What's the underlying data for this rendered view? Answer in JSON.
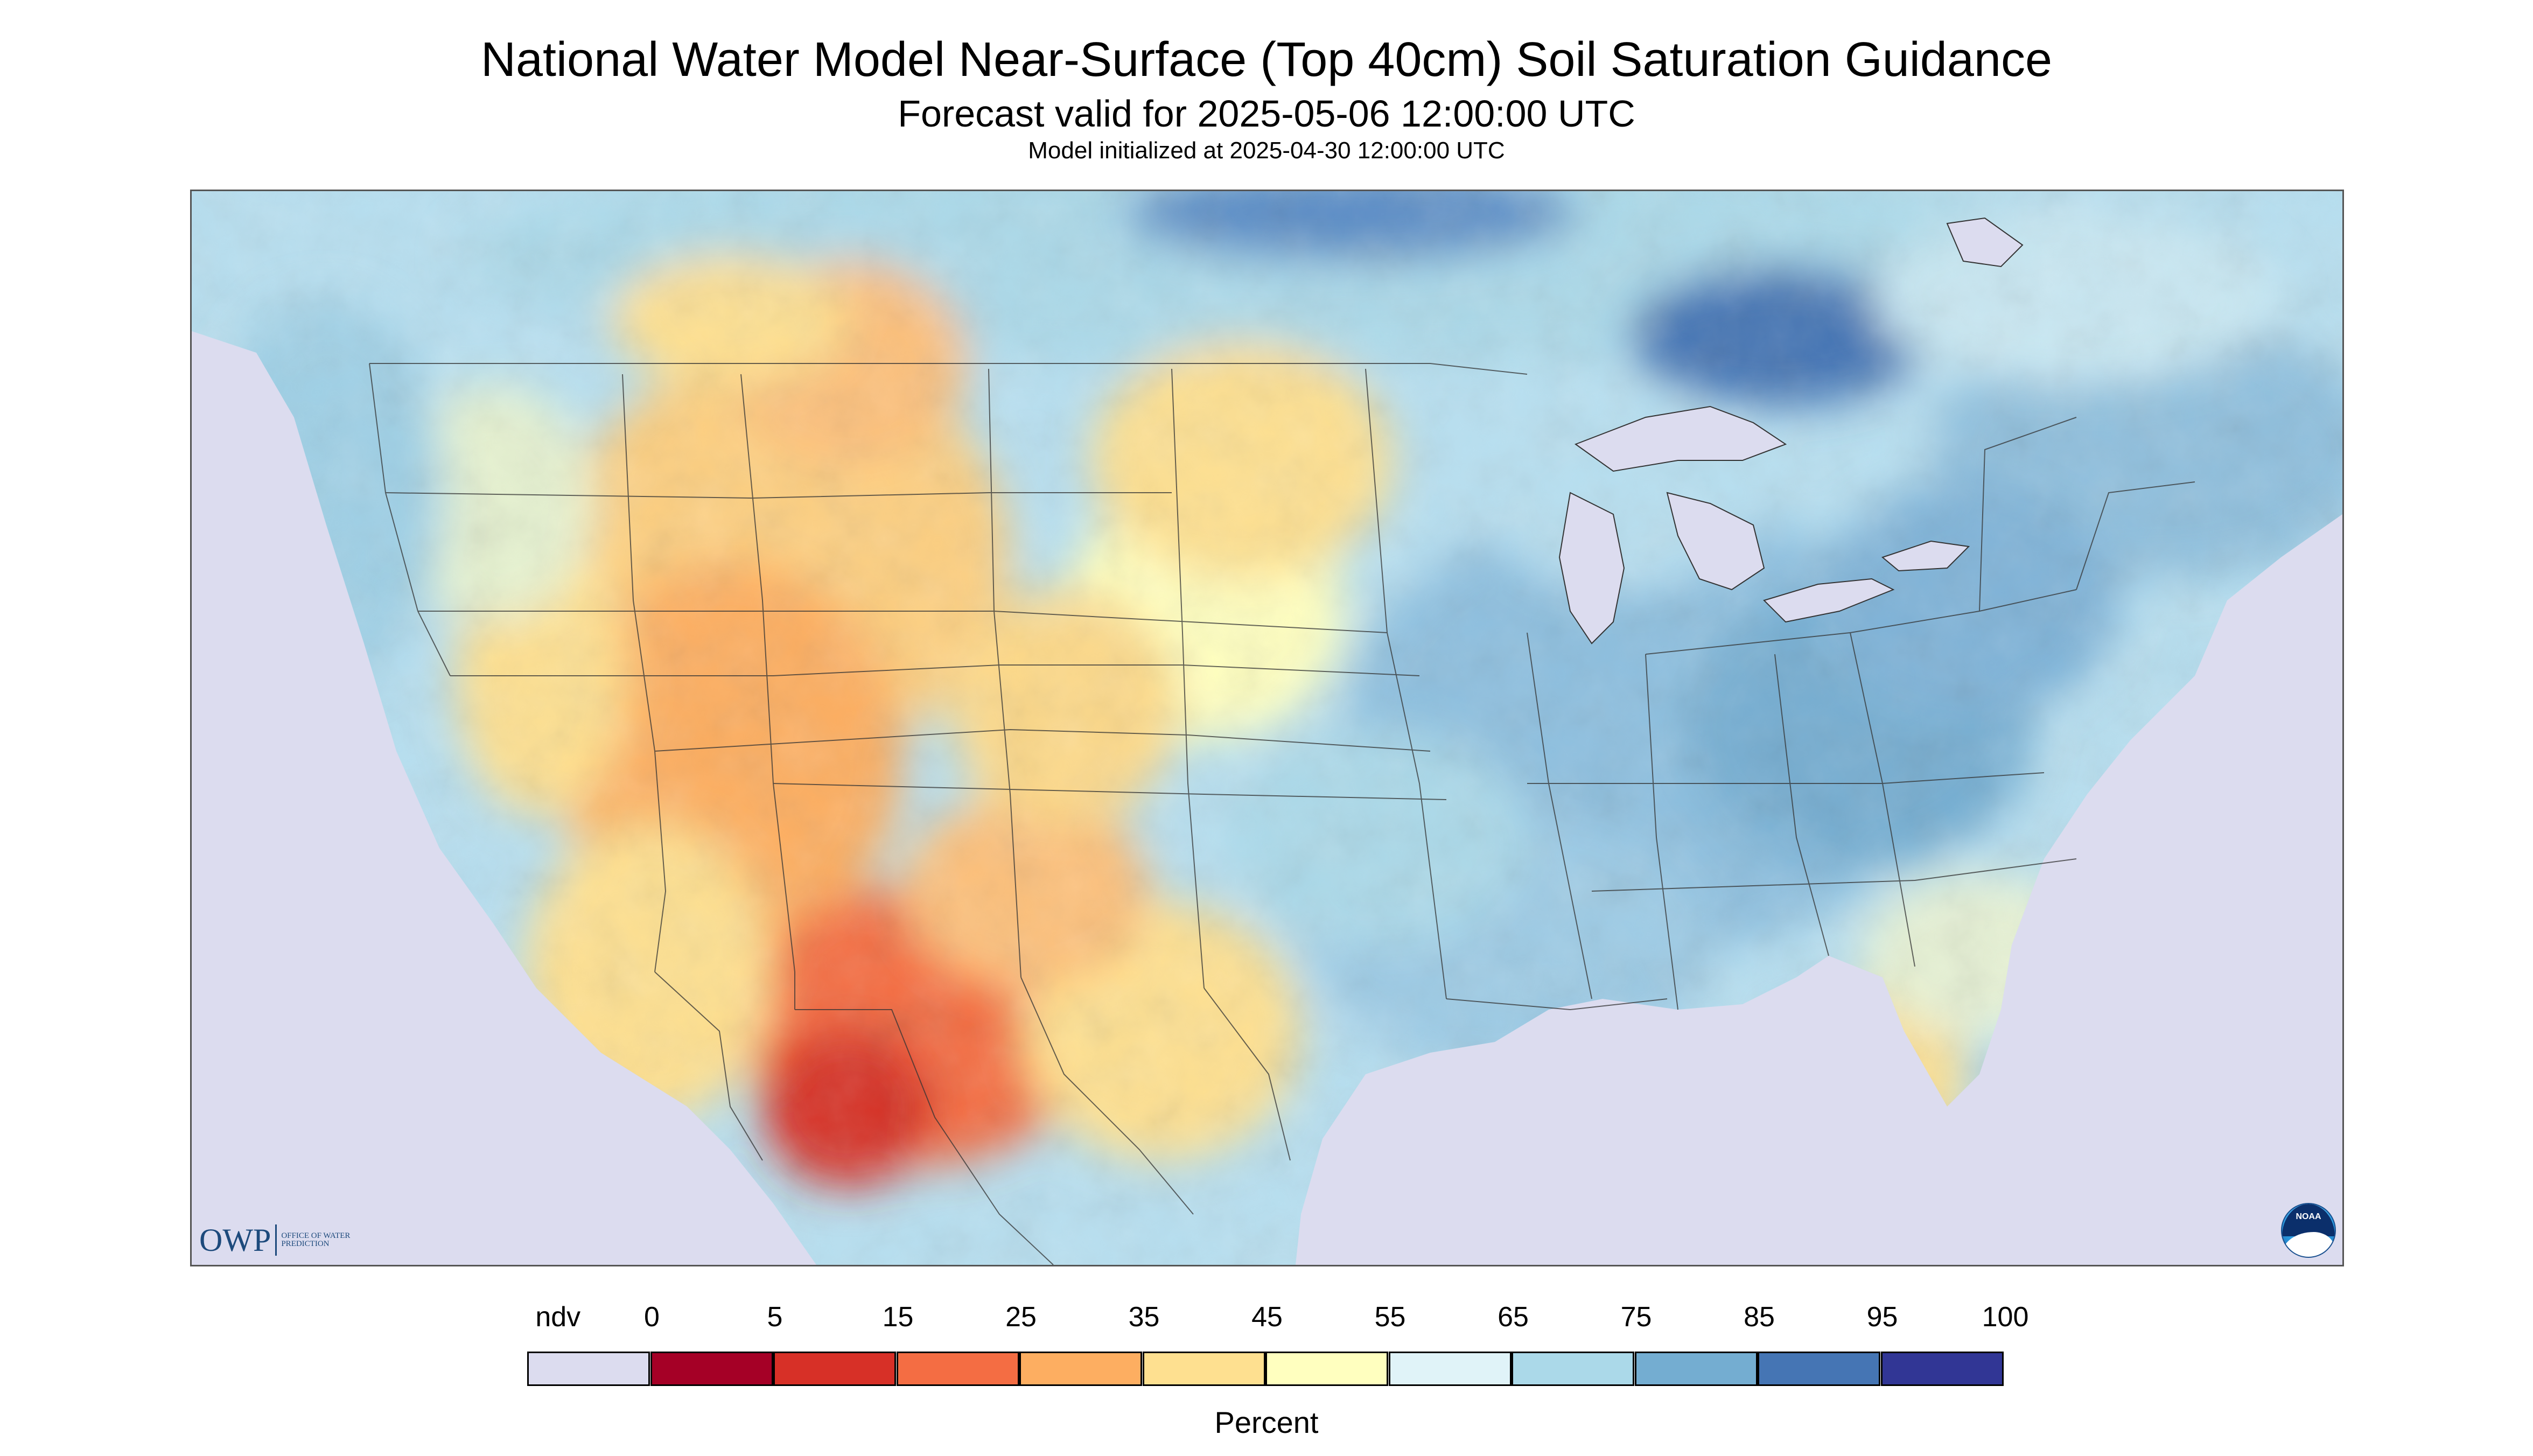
{
  "title": "National Water Model Near-Surface (Top 40cm) Soil Saturation Guidance",
  "subtitle": "Forecast valid for 2025-05-06 12:00:00 UTC",
  "init_line": "Model initialized at 2025-04-30 12:00:00 UTC",
  "logos": {
    "owp_text": "OWP",
    "owp_sub": "OFFICE OF WATER PREDICTION",
    "noaa_text": "NOAA"
  },
  "legend": {
    "unit": "Percent",
    "labels": [
      "ndv",
      "0",
      "5",
      "15",
      "25",
      "35",
      "45",
      "55",
      "65",
      "75",
      "85",
      "95",
      "100"
    ],
    "colors": [
      "#dcdcef",
      "#a50026",
      "#d73027",
      "#f46d43",
      "#fdae61",
      "#fee090",
      "#ffffbf",
      "#e0f3f8",
      "#abd9e9",
      "#74add1",
      "#4575b4",
      "#313695"
    ]
  },
  "map": {
    "projection": "Lambert Conformal Conic",
    "region": "CONUS",
    "nodata_color": "#dcdcef",
    "water_color": "#dcdcef"
  }
}
